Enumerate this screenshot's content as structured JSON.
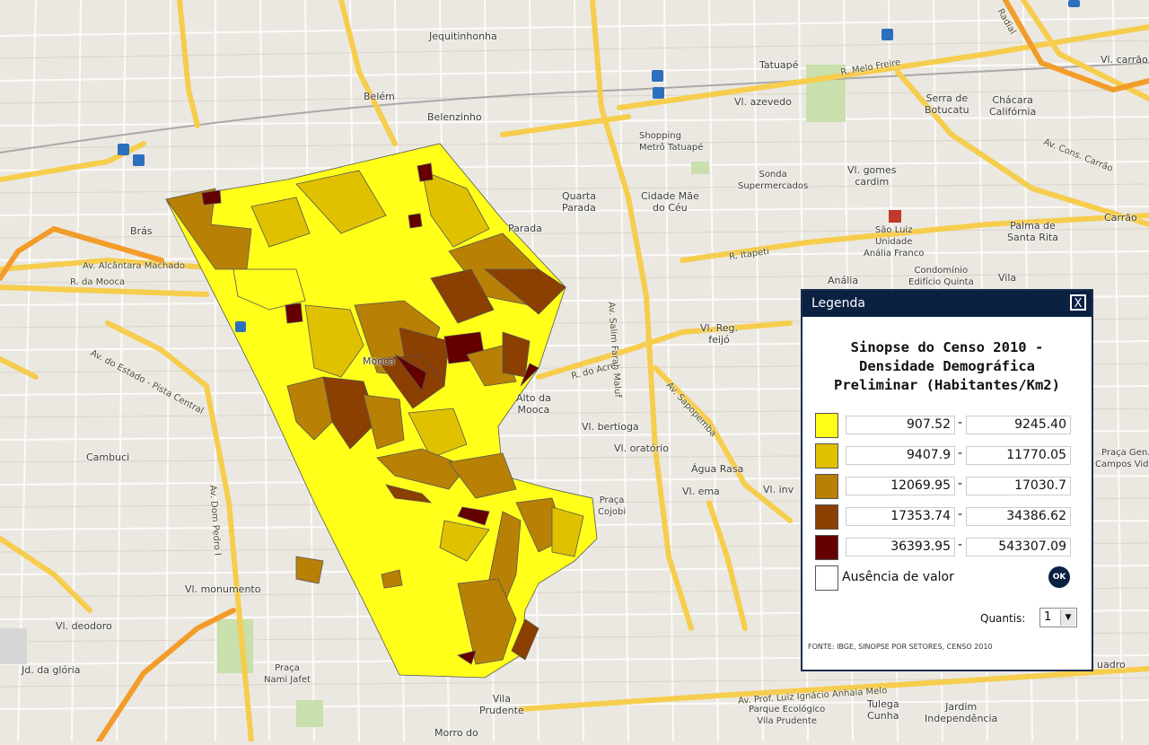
{
  "map": {
    "labels": [
      {
        "name": "label-jequitinhonha",
        "text": "Jequitinhonha"
      },
      {
        "name": "label-belem",
        "text": "Belém"
      },
      {
        "name": "label-belenzinho",
        "text": "Belenzinho"
      },
      {
        "name": "label-tatuape",
        "text": "Tatuapé"
      },
      {
        "name": "label-vl-azevedo",
        "text": "Vl. azevedo"
      },
      {
        "name": "label-serra-botucatu",
        "text": "Serra de\nBotucatu"
      },
      {
        "name": "label-chacara-california",
        "text": "Chácara\nCalifórnia"
      },
      {
        "name": "label-shopping-metro",
        "text": "Shopping\nMetrô Tatuapé"
      },
      {
        "name": "label-quarta-parada",
        "text": "Quarta\nParada"
      },
      {
        "name": "label-cidade-mae-ceu",
        "text": "Cidade Mãe\ndo Céu"
      },
      {
        "name": "label-sonda",
        "text": "Sonda\nSupermercados"
      },
      {
        "name": "label-vl-gomes-cardim",
        "text": "Vl. gomes\ncardim"
      },
      {
        "name": "label-palma-santa-rita",
        "text": "Palma de\nSanta Rita"
      },
      {
        "name": "label-sao-luiz",
        "text": "São Luiz\nUnidade\nAnália Franco"
      },
      {
        "name": "label-anelia",
        "text": "Anália"
      },
      {
        "name": "label-condominio",
        "text": "Condomínio\nEdifício Quinta"
      },
      {
        "name": "label-vila",
        "text": "Vila"
      },
      {
        "name": "label-bras",
        "text": "Brás"
      },
      {
        "name": "label-parada",
        "text": "Parada"
      },
      {
        "name": "label-mooca",
        "text": "Mooca"
      },
      {
        "name": "label-alto-mooca",
        "text": "Alto da\nMooca"
      },
      {
        "name": "label-vl-reg-feijo",
        "text": "Vl. Reg.\nfeijó"
      },
      {
        "name": "label-vl-bertioga",
        "text": "Vl. bertioga"
      },
      {
        "name": "label-vl-oratorio",
        "text": "Vl. oratório"
      },
      {
        "name": "label-agua-rasa",
        "text": "Água Rasa"
      },
      {
        "name": "label-vl-ema",
        "text": "Vl. ema"
      },
      {
        "name": "label-vl-inv",
        "text": "Vl. inv"
      },
      {
        "name": "label-praca-cojobi",
        "text": "Praça\nCojobi"
      },
      {
        "name": "label-cambuci",
        "text": "Cambuci"
      },
      {
        "name": "label-vl-monumento",
        "text": "Vl. monumento"
      },
      {
        "name": "label-vl-deodoro",
        "text": "Vl. deodoro"
      },
      {
        "name": "label-jd-gloria",
        "text": "Jd. da glória"
      },
      {
        "name": "label-praca-nami-jafet",
        "text": "Praça\nNami Jafet"
      },
      {
        "name": "label-vila-prudente",
        "text": "Vila\nPrudente"
      },
      {
        "name": "label-morro-do",
        "text": "Morro do"
      },
      {
        "name": "label-parque-ecologico",
        "text": "Parque Ecológico\nVila Prudente"
      },
      {
        "name": "label-tulega-cunha",
        "text": "Tulega\nCunha"
      },
      {
        "name": "label-jardim-independencia",
        "text": "Jardim\nIndependência"
      },
      {
        "name": "label-carrao",
        "text": "Carrão"
      },
      {
        "name": "label-vl-carrao",
        "text": "Vl. carrão"
      },
      {
        "name": "label-praca-campos-vidal",
        "text": "Praça Gen.\nCampos Vidal"
      },
      {
        "name": "label-quadro",
        "text": "uadro"
      }
    ],
    "roads": [
      {
        "name": "road-r-melo-freire",
        "text": "R. Melo Freire"
      },
      {
        "name": "road-av-alcantara-machado",
        "text": "Av. Alcântara Machado"
      },
      {
        "name": "road-r-da-mooca",
        "text": "R. da Mooca"
      },
      {
        "name": "road-av-do-estado",
        "text": "Av. do Estado - Pista Central"
      },
      {
        "name": "road-av-salim-farah-maluf",
        "text": "Av. Salim Farah Maluf"
      },
      {
        "name": "road-r-itapeti",
        "text": "R. Itapeti"
      },
      {
        "name": "road-av-sapopemba",
        "text": "Av. Sapopemba"
      },
      {
        "name": "road-av-luiz-ignacio",
        "text": "Av. Prof. Luiz Ignácio Anhaia Melo"
      },
      {
        "name": "road-av-conselheiro-carrao",
        "text": "Av. Cons. Carrão"
      },
      {
        "name": "road-av-dom-pedro",
        "text": "Av. Dom Pedro I"
      },
      {
        "name": "road-r-do-acre",
        "text": "R. do Acre"
      },
      {
        "name": "road-av-radial",
        "text": "Radial"
      }
    ]
  },
  "legend": {
    "header": "Legenda",
    "close_label": "X",
    "title_line1": "Sinopse do Censo 2010 -",
    "title_line2": "Densidade Demográfica",
    "title_line3": "Preliminar (Habitantes/Km2)",
    "rows": [
      {
        "color": "#ffff1a",
        "min": "907.52",
        "max": "9245.40"
      },
      {
        "color": "#e0c100",
        "min": "9407.9",
        "max": "11770.05"
      },
      {
        "color": "#b88105",
        "min": "12069.95",
        "max": "17030.7"
      },
      {
        "color": "#8b3f00",
        "min": "17353.74",
        "max": "34386.62"
      },
      {
        "color": "#650000",
        "min": "36393.95",
        "max": "543307.09"
      }
    ],
    "no_value_label": "Ausência de valor",
    "ok_label": "OK",
    "quantis_label": "Quantis:",
    "quantis_value": "1",
    "source": "FONTE: IBGE, SINOPSE POR SETORES, CENSO 2010"
  }
}
